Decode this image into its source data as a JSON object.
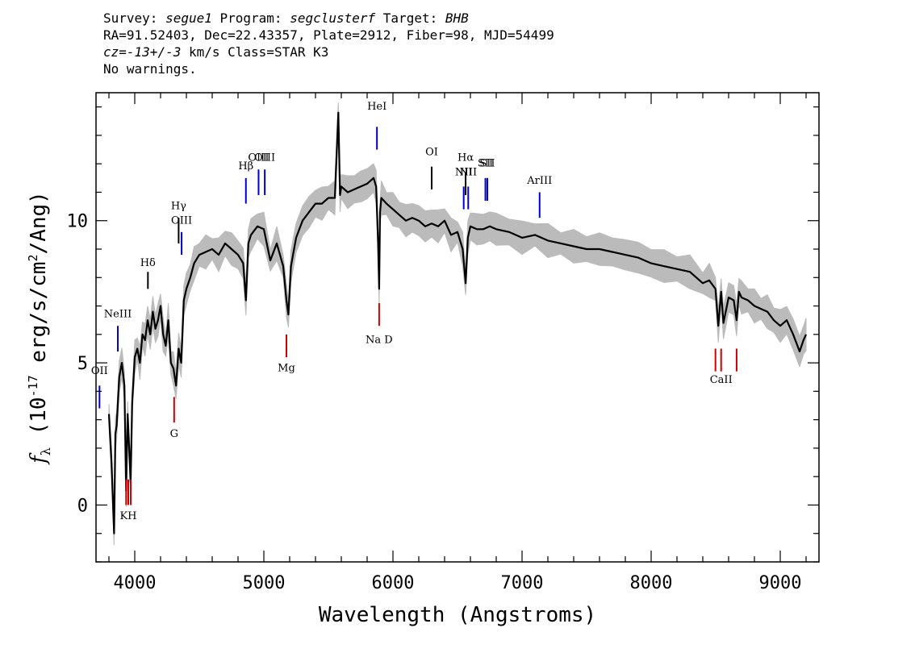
{
  "header": {
    "line1": [
      {
        "text": "Survey: ",
        "italic": false
      },
      {
        "text": "segue1",
        "italic": true
      },
      {
        "text": " Program: ",
        "italic": false
      },
      {
        "text": "segclusterf",
        "italic": true
      },
      {
        "text": " Target: ",
        "italic": false
      },
      {
        "text": "BHB",
        "italic": true
      }
    ],
    "line2": "RA=91.52403, Dec=22.43357, Plate=2912, Fiber=98, MJD=54499",
    "line3": [
      {
        "text": "cz=",
        "italic": true
      },
      {
        "text": "-13+/-3",
        "italic": true
      },
      {
        "text": " km/s Class=STAR K3",
        "italic": false
      }
    ],
    "line4": "No warnings."
  },
  "chart_data": {
    "type": "line",
    "xlabel": "Wavelength (Angstroms)",
    "ylabel_parts": {
      "f": "f",
      "sub": "λ",
      "open": " (10",
      "exp": "-17",
      "unit1": " erg/s/cm",
      "sq": "2",
      "unit2": "/Ang)"
    },
    "xlim": [
      3700,
      9300
    ],
    "ylim": [
      -2,
      14.5
    ],
    "xticks": [
      4000,
      5000,
      6000,
      7000,
      8000,
      9000
    ],
    "xtick_labels": [
      "4000",
      "5000",
      "6000",
      "7000",
      "8000",
      "9000"
    ],
    "yticks": [
      0,
      5,
      10
    ],
    "ytick_labels": [
      "0",
      "5",
      "10"
    ],
    "x_minor_step": 200,
    "y_minor_step": 1,
    "series": [
      {
        "role": "flux",
        "color": "#000000",
        "x": [
          3800,
          3820,
          3840,
          3850,
          3860,
          3880,
          3900,
          3920,
          3933,
          3945,
          3968,
          3980,
          4000,
          4020,
          4040,
          4060,
          4080,
          4100,
          4120,
          4140,
          4160,
          4180,
          4200,
          4220,
          4240,
          4260,
          4280,
          4300,
          4320,
          4340,
          4360,
          4380,
          4400,
          4430,
          4460,
          4500,
          4550,
          4600,
          4650,
          4700,
          4750,
          4800,
          4840,
          4861,
          4880,
          4900,
          4950,
          5000,
          5050,
          5100,
          5150,
          5175,
          5190,
          5210,
          5250,
          5300,
          5350,
          5400,
          5450,
          5500,
          5550,
          5577,
          5590,
          5600,
          5650,
          5700,
          5750,
          5800,
          5850,
          5870,
          5885,
          5893,
          5900,
          5910,
          5950,
          6000,
          6050,
          6100,
          6150,
          6200,
          6250,
          6300,
          6350,
          6400,
          6450,
          6500,
          6540,
          6563,
          6580,
          6600,
          6650,
          6700,
          6750,
          6800,
          6900,
          7000,
          7100,
          7200,
          7300,
          7400,
          7500,
          7600,
          7700,
          7800,
          7900,
          8000,
          8100,
          8200,
          8300,
          8400,
          8450,
          8498,
          8520,
          8542,
          8560,
          8600,
          8640,
          8662,
          8680,
          8700,
          8750,
          8800,
          8850,
          8900,
          8950,
          9000,
          9050,
          9100,
          9150,
          9180,
          9200
        ],
        "y": [
          3.2,
          1.5,
          -1.0,
          2.5,
          2.8,
          4.5,
          5.0,
          4.2,
          0.5,
          3.2,
          0.8,
          3.6,
          5.2,
          5.5,
          5.0,
          6.0,
          5.8,
          6.5,
          6.0,
          6.8,
          6.2,
          6.5,
          7.0,
          6.0,
          5.6,
          6.5,
          5.0,
          4.8,
          4.2,
          5.5,
          5.0,
          7.2,
          7.6,
          8.0,
          8.5,
          8.8,
          8.9,
          9.0,
          8.8,
          9.2,
          9.0,
          8.8,
          8.5,
          7.2,
          9.2,
          9.5,
          9.8,
          9.7,
          8.6,
          9.2,
          8.4,
          7.2,
          6.7,
          8.4,
          9.4,
          10.0,
          10.3,
          10.6,
          10.6,
          10.8,
          10.8,
          13.8,
          10.9,
          11.2,
          11.0,
          11.1,
          11.2,
          11.3,
          11.5,
          11.2,
          9.2,
          7.6,
          10.3,
          10.8,
          10.6,
          10.4,
          10.2,
          10.0,
          10.1,
          10.0,
          9.8,
          9.9,
          9.8,
          10.0,
          9.5,
          9.6,
          9.0,
          7.8,
          9.4,
          9.8,
          9.7,
          9.7,
          9.8,
          9.7,
          9.6,
          9.4,
          9.5,
          9.3,
          9.2,
          9.1,
          9.0,
          9.0,
          8.9,
          8.8,
          8.7,
          8.5,
          8.4,
          8.3,
          8.2,
          7.8,
          7.9,
          7.6,
          6.3,
          7.5,
          6.4,
          7.3,
          7.2,
          6.5,
          7.5,
          7.3,
          7.2,
          7.0,
          6.9,
          6.8,
          6.5,
          6.3,
          6.5,
          6.0,
          5.4,
          5.8,
          6.0
        ]
      }
    ],
    "lines": [
      {
        "label": "OII",
        "x": 3727,
        "y_label": 4.6,
        "bar": [
          3.4,
          4.2
        ],
        "color": "#0000cc"
      },
      {
        "label": "NeIII",
        "x": 3869,
        "y_label": 6.6,
        "bar": [
          5.4,
          6.3
        ],
        "color": "#0000cc"
      },
      {
        "label": "Hδ",
        "x": 4102,
        "y_label": 8.4,
        "bar": [
          7.6,
          8.2
        ],
        "color": "#000000"
      },
      {
        "label": "Hγ",
        "x": 4340,
        "y_label": 10.4,
        "bar": [
          9.2,
          10.1
        ],
        "color": "#000000"
      },
      {
        "label": "OIII",
        "x": 4363,
        "y_label": 9.9,
        "bar": [
          8.8,
          9.6
        ],
        "color": "#0000cc"
      },
      {
        "label": "Hβ",
        "x": 4861,
        "y_label": 11.8,
        "bar": [
          10.6,
          11.5
        ],
        "color": "#0000cc"
      },
      {
        "label": "OIII",
        "x": 4959,
        "y_label": 12.1,
        "bar": [
          10.9,
          11.8
        ],
        "color": "#0000cc"
      },
      {
        "label": "OIII",
        "x": 5007,
        "y_label": 12.1,
        "bar": [
          10.9,
          11.8
        ],
        "color": "#0000cc"
      },
      {
        "label": "HeI",
        "x": 5876,
        "y_label": 13.9,
        "bar": [
          12.5,
          13.3
        ],
        "color": "#0000cc"
      },
      {
        "label": "OI",
        "x": 6300,
        "y_label": 12.3,
        "bar": [
          11.1,
          11.9
        ],
        "color": "#000000"
      },
      {
        "label": "NII",
        "x": 6548,
        "y_label": 11.6,
        "bar": [
          10.4,
          11.2
        ],
        "color": "#0000cc"
      },
      {
        "label": "Hα",
        "x": 6563,
        "y_label": 12.1,
        "bar": [
          10.9,
          11.7
        ],
        "color": "#000000"
      },
      {
        "label": "NII",
        "x": 6583,
        "y_label": 11.6,
        "bar": [
          10.4,
          11.2
        ],
        "color": "#0000cc"
      },
      {
        "label": "SII",
        "x": 6716,
        "y_label": 11.9,
        "bar": [
          10.7,
          11.5
        ],
        "color": "#0000cc"
      },
      {
        "label": "SII",
        "x": 6731,
        "y_label": 11.9,
        "bar": [
          10.7,
          11.5
        ],
        "color": "#0000cc"
      },
      {
        "label": "ArIII",
        "x": 7136,
        "y_label": 11.3,
        "bar": [
          10.1,
          11.0
        ],
        "color": "#0000cc"
      },
      {
        "label": "Na D",
        "x": 5893,
        "y_label": 5.7,
        "bar": [
          6.3,
          7.1
        ],
        "color": "#cc0000"
      },
      {
        "label": "Mg",
        "x": 5175,
        "y_label": 4.7,
        "bar": [
          5.2,
          6.0
        ],
        "color": "#cc0000"
      },
      {
        "label": "G",
        "x": 4305,
        "y_label": 2.4,
        "bar": [
          2.9,
          3.8
        ],
        "color": "#cc0000"
      },
      {
        "label": "KH",
        "x": 3950,
        "y_label": -0.5,
        "bar": [
          0.0,
          0.9
        ],
        "color": "#cc0000"
      },
      {
        "label": "CaII",
        "x": 8542,
        "y_label": 4.3,
        "bar": [
          4.7,
          5.5
        ],
        "color": "#cc0000"
      }
    ],
    "extra_bars": [
      {
        "x": 3933,
        "bar": [
          0.0,
          0.9
        ],
        "color": "#cc0000"
      },
      {
        "x": 3969,
        "bar": [
          0.0,
          0.9
        ],
        "color": "#cc0000"
      },
      {
        "x": 8498,
        "bar": [
          4.7,
          5.5
        ],
        "color": "#cc0000"
      },
      {
        "x": 8662,
        "bar": [
          4.7,
          5.5
        ],
        "color": "#cc0000"
      }
    ],
    "colors": {
      "axes": "#000000",
      "flux": "#000000",
      "error_band": "#bbbbbb",
      "emission": "#0000cc",
      "absorption": "#cc0000"
    }
  }
}
